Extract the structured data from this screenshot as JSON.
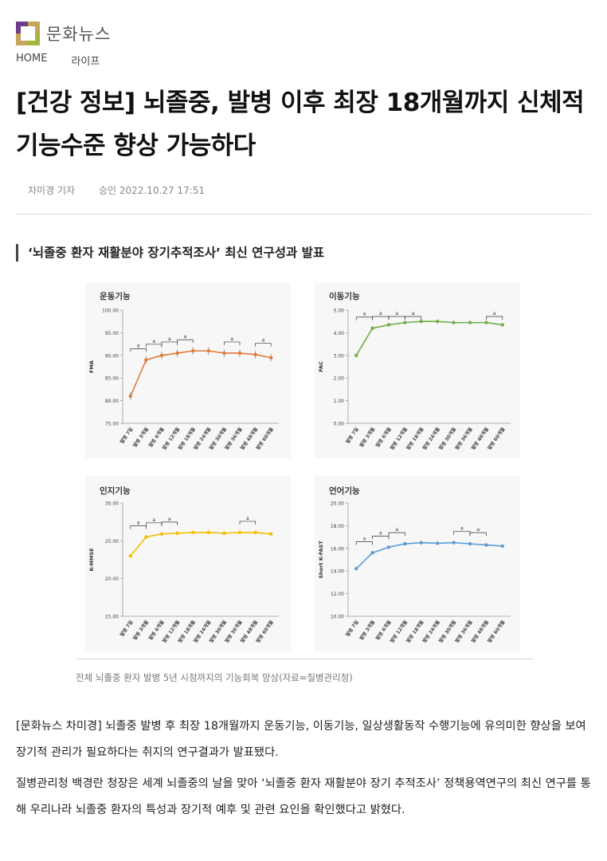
{
  "site": {
    "name": "문화뉴스"
  },
  "breadcrumb": [
    "HOME",
    "라이프"
  ],
  "article": {
    "title": "[건강 정보] 뇌졸중, 발병 이후 최장 18개월까지 신체적 기능수준 향상 가능하다",
    "reporter": "차미경 기자",
    "approved": "승인 2022.10.27 17:51",
    "subheading": "‘뇌졸중 환자 재활분야 장기추적조사’ 최신 연구성과 발표",
    "caption": "전체 뇌졸중 환자 발병 5년 시점까지의 기능회복 양상(자료=질병관리청)",
    "paragraphs": [
      "[문화뉴스 차미경] 뇌졸중 발병 후 최장 18개월까지 운동기능, 이동기능, 일상생활동작 수행기능에 유의미한 향상을 보여 장기적 관리가 필요하다는 취지의 연구결과가 발표됐다.",
      "질병관리청 백경란 청장은 세계 뇌졸중의 날을 맞아 ‘뇌졸중 환자 재활분야 장기 추적조사’ 정책용역연구의 최신 연구를 통해 우리나라 뇌졸중 환자의 특성과 장기적 예후 및 관련 요인을 확인했다고 밝혔다."
    ]
  },
  "chart_data": [
    {
      "type": "line",
      "title": "운동기능",
      "ylabel": "FMA",
      "ylim": [
        75,
        100
      ],
      "yticks": [
        "75.00",
        "80.00",
        "85.00",
        "90.00",
        "95.00",
        "100.00"
      ],
      "categories": [
        "발병 7일",
        "발병 3개월",
        "발병 6개월",
        "발병 12개월",
        "발병 18개월",
        "발병 24개월",
        "발병 30개월",
        "발병 36개월",
        "발병 48개월",
        "발병 60개월"
      ],
      "values": [
        81.0,
        89.0,
        90.0,
        90.5,
        91.0,
        91.0,
        90.5,
        90.5,
        90.2,
        89.5
      ],
      "color": "#e07b39",
      "significance": [
        [
          0,
          1
        ],
        [
          1,
          2
        ],
        [
          2,
          3
        ],
        [
          3,
          4
        ],
        [
          6,
          7
        ],
        [
          8,
          9
        ]
      ],
      "sig_label": "a"
    },
    {
      "type": "line",
      "title": "이동기능",
      "ylabel": "FAC",
      "ylim": [
        0,
        5
      ],
      "yticks": [
        "0.00",
        "1.00",
        "2.00",
        "3.00",
        "4.00",
        "5.00"
      ],
      "categories": [
        "발병 7일",
        "발병 3개월",
        "발병 6개월",
        "발병 12개월",
        "발병 18개월",
        "발병 24개월",
        "발병 30개월",
        "발병 36개월",
        "발병 48개월",
        "발병 60개월"
      ],
      "values": [
        3.0,
        4.2,
        4.35,
        4.45,
        4.5,
        4.5,
        4.45,
        4.45,
        4.45,
        4.35
      ],
      "color": "#70ad47",
      "significance": [
        [
          0,
          1
        ],
        [
          1,
          2
        ],
        [
          2,
          3
        ],
        [
          3,
          4
        ],
        [
          8,
          9
        ]
      ],
      "sig_label": "a"
    },
    {
      "type": "line",
      "title": "인지기능",
      "ylabel": "K-MMSE",
      "ylim": [
        15,
        30
      ],
      "yticks": [
        "15.00",
        "20.00",
        "25.00",
        "30.00"
      ],
      "categories": [
        "발병 7일",
        "발병 3개월",
        "발병 6개월",
        "발병 12개월",
        "발병 18개월",
        "발병 24개월",
        "발병 30개월",
        "발병 36개월",
        "발병 48개월",
        "발병 60개월"
      ],
      "values": [
        23.0,
        25.5,
        25.9,
        26.0,
        26.1,
        26.1,
        26.0,
        26.1,
        26.1,
        25.9
      ],
      "color": "#f0c000",
      "significance": [
        [
          0,
          1
        ],
        [
          1,
          2
        ],
        [
          2,
          3
        ],
        [
          7,
          8
        ]
      ],
      "sig_label": "a"
    },
    {
      "type": "line",
      "title": "언어기능",
      "ylabel": "Short K-FAST",
      "ylim": [
        10,
        20
      ],
      "yticks": [
        "10.00",
        "12.00",
        "14.00",
        "16.00",
        "18.00",
        "20.00"
      ],
      "categories": [
        "발병 7일",
        "발병 3개월",
        "발병 6개월",
        "발병 12개월",
        "발병 18개월",
        "발병 24개월",
        "발병 30개월",
        "발병 36개월",
        "발병 48개월",
        "발병 60개월"
      ],
      "values": [
        14.2,
        15.6,
        16.1,
        16.4,
        16.5,
        16.45,
        16.5,
        16.4,
        16.3,
        16.2
      ],
      "color": "#5b9bd5",
      "significance": [
        [
          0,
          1
        ],
        [
          1,
          2
        ],
        [
          2,
          3
        ],
        [
          6,
          7
        ],
        [
          7,
          8
        ]
      ],
      "sig_label": "a"
    }
  ]
}
